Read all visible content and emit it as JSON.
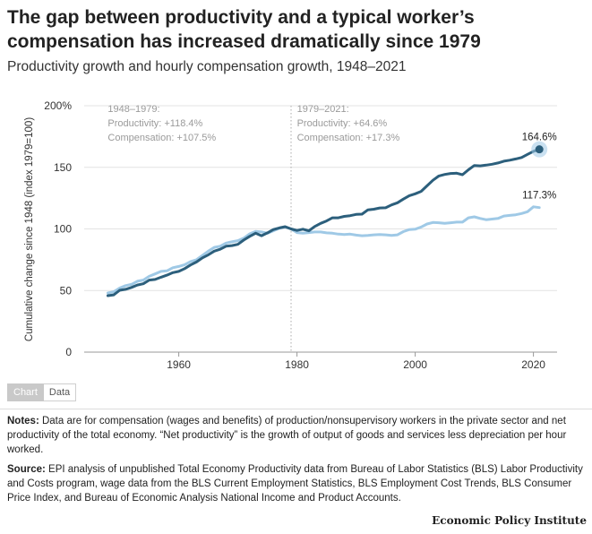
{
  "header": {
    "title": "The gap between productivity and a typical worker’s compensation has increased dramatically since 1979",
    "subtitle": "Productivity growth and hourly compensation growth, 1948–2021"
  },
  "toggle": {
    "chart_label": "Chart",
    "data_label": "Data"
  },
  "colors": {
    "productivity": "#2c5f7c",
    "compensation": "#9fc9e6",
    "grid": "#e3e3e3",
    "axis": "#999999"
  },
  "chart_data": {
    "type": "line",
    "ylabel": "Cumulative change since 1948 (index 1979=100)",
    "ylim": [
      0,
      200
    ],
    "xlim": [
      1944,
      2024
    ],
    "yticks": [
      0,
      50,
      100,
      150,
      200
    ],
    "ytick_labels": [
      "0",
      "50",
      "100",
      "150",
      "200%"
    ],
    "xticks": [
      1960,
      1980,
      2000,
      2020
    ],
    "xtick_labels": [
      "1960",
      "1980",
      "2000",
      "2020"
    ],
    "reference_year": 1979,
    "annotations": [
      {
        "period": "1948–1979:",
        "productivity": "Productivity: +118.4%",
        "compensation": "Compensation: +107.5%"
      },
      {
        "period": "1979–2021:",
        "productivity": "Productivity: +64.6%",
        "compensation": "Compensation: +17.3%"
      }
    ],
    "end_labels": {
      "productivity": "164.6%",
      "compensation": "117.3%"
    },
    "x": [
      1948,
      1949,
      1950,
      1951,
      1952,
      1953,
      1954,
      1955,
      1956,
      1957,
      1958,
      1959,
      1960,
      1961,
      1962,
      1963,
      1964,
      1965,
      1966,
      1967,
      1968,
      1969,
      1970,
      1971,
      1972,
      1973,
      1974,
      1975,
      1976,
      1977,
      1978,
      1979,
      1980,
      1981,
      1982,
      1983,
      1984,
      1985,
      1986,
      1987,
      1988,
      1989,
      1990,
      1991,
      1992,
      1993,
      1994,
      1995,
      1996,
      1997,
      1998,
      1999,
      2000,
      2001,
      2002,
      2003,
      2004,
      2005,
      2006,
      2007,
      2008,
      2009,
      2010,
      2011,
      2012,
      2013,
      2014,
      2015,
      2016,
      2017,
      2018,
      2019,
      2020,
      2021
    ],
    "series": [
      {
        "name": "Productivity",
        "values": [
          45.8,
          46.5,
          50.2,
          51.0,
          52.5,
          54.5,
          55.5,
          58.5,
          59.0,
          60.8,
          62.5,
          64.5,
          65.5,
          67.8,
          70.8,
          73.2,
          76.5,
          79.0,
          82.0,
          83.5,
          86.0,
          86.5,
          87.5,
          91.0,
          94.0,
          96.5,
          94.5,
          96.8,
          99.5,
          100.8,
          101.8,
          100.0,
          98.8,
          99.8,
          98.5,
          102.0,
          104.5,
          106.5,
          109.0,
          109.0,
          110.2,
          110.8,
          111.8,
          112.0,
          115.5,
          116.0,
          117.0,
          117.2,
          119.5,
          121.2,
          124.2,
          127.0,
          128.5,
          130.5,
          135.0,
          139.5,
          143.0,
          144.2,
          145.0,
          145.2,
          144.0,
          148.0,
          151.5,
          151.2,
          151.8,
          152.5,
          153.5,
          155.0,
          155.8,
          156.8,
          158.0,
          160.5,
          163.0,
          164.6
        ]
      },
      {
        "name": "Compensation",
        "values": [
          48.0,
          49.0,
          52.0,
          54.0,
          55.0,
          57.5,
          58.5,
          61.5,
          63.5,
          65.5,
          66.0,
          68.5,
          69.5,
          71.0,
          73.5,
          75.0,
          78.5,
          82.0,
          85.0,
          86.0,
          88.5,
          89.5,
          90.5,
          92.5,
          96.0,
          98.0,
          97.5,
          96.5,
          98.5,
          100.5,
          101.5,
          100.0,
          97.0,
          96.5,
          97.0,
          97.5,
          97.5,
          96.8,
          96.5,
          95.8,
          95.5,
          95.8,
          95.0,
          94.5,
          94.8,
          95.2,
          95.5,
          95.2,
          94.8,
          95.2,
          97.8,
          99.5,
          99.8,
          101.5,
          104.0,
          105.2,
          105.0,
          104.5,
          105.0,
          105.5,
          105.5,
          109.0,
          109.8,
          108.5,
          107.5,
          108.0,
          108.5,
          110.5,
          111.0,
          111.5,
          112.5,
          114.0,
          118.0,
          117.3
        ]
      }
    ]
  },
  "notes": {
    "notes_label": "Notes:",
    "notes_text": "Data are for compensation (wages and benefits) of production/nonsupervisory workers in the private sector and net productivity of the total economy. “Net productivity” is the growth of output of goods and services less depreciation per hour worked.",
    "source_label": "Source:",
    "source_text": "EPI analysis of unpublished Total Economy Productivity data from Bureau of Labor Statistics (BLS) Labor Productivity and Costs program, wage data from the BLS Current Employment Statistics, BLS Employment Cost Trends, BLS Consumer Price Index, and Bureau of Economic Analysis National Income and Product Accounts."
  },
  "brand": "Economic Policy Institute"
}
